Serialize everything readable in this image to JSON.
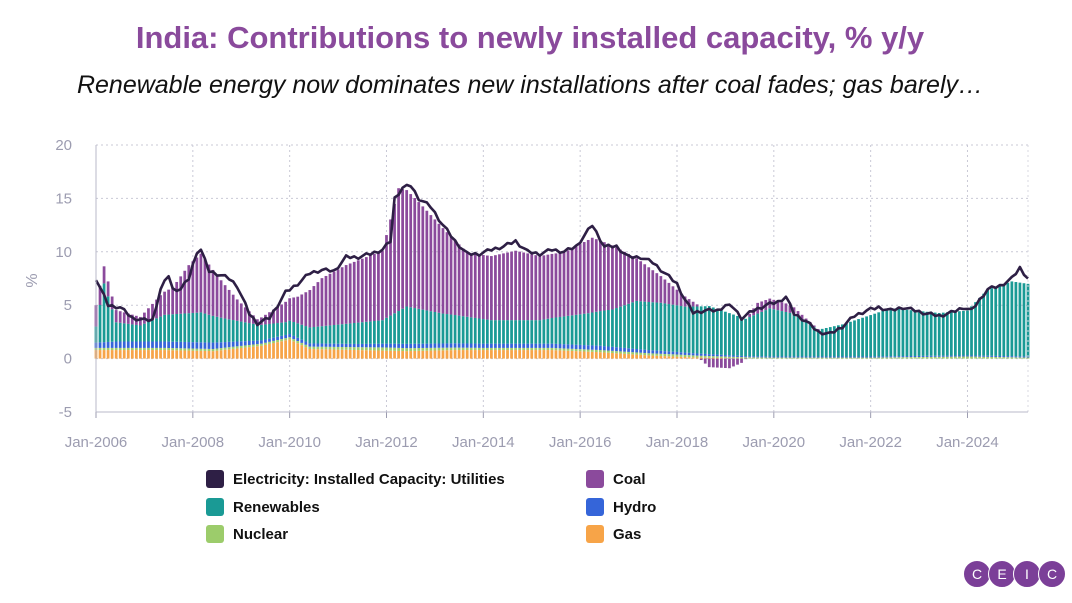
{
  "header": {
    "title": "India: Contributions to newly installed capacity, % y/y",
    "subtitle": "Renewable energy now dominates new installations after coal fades; gas barely…"
  },
  "logo": {
    "letters": [
      "C",
      "E",
      "I",
      "C"
    ],
    "color": "#7b3f98"
  },
  "chart_data": {
    "type": "bar",
    "ylabel": "%",
    "ylim": [
      -5,
      20
    ],
    "yticks": [
      -5,
      0,
      5,
      10,
      15,
      20
    ],
    "xlim": [
      "2006-01",
      "2025-04"
    ],
    "xticks": [
      "Jan-2006",
      "Jan-2008",
      "Jan-2010",
      "Jan-2012",
      "Jan-2014",
      "Jan-2016",
      "Jan-2018",
      "Jan-2020",
      "Jan-2022",
      "Jan-2024"
    ],
    "grid": true,
    "legend_position": "bottom",
    "stacked": true,
    "frequency": "monthly",
    "series": [
      {
        "name": "Electricity: Installed Capacity: Utilities",
        "kind": "line",
        "color": "#2e1f45",
        "anchors": [
          [
            "2006-01",
            7.5
          ],
          [
            "2006-04",
            5.0
          ],
          [
            "2006-07",
            4.8
          ],
          [
            "2006-10",
            3.8
          ],
          [
            "2007-01",
            3.6
          ],
          [
            "2007-03",
            3.6
          ],
          [
            "2007-05",
            6.5
          ],
          [
            "2007-07",
            7.8
          ],
          [
            "2007-08",
            6.5
          ],
          [
            "2007-10",
            6.5
          ],
          [
            "2007-12",
            7.5
          ],
          [
            "2008-02",
            10.0
          ],
          [
            "2008-03",
            10.2
          ],
          [
            "2008-05",
            8.2
          ],
          [
            "2008-08",
            7.8
          ],
          [
            "2008-10",
            7.5
          ],
          [
            "2008-12",
            6.8
          ],
          [
            "2009-03",
            4.2
          ],
          [
            "2009-05",
            3.3
          ],
          [
            "2009-08",
            3.8
          ],
          [
            "2009-10",
            5.0
          ],
          [
            "2009-12",
            6.2
          ],
          [
            "2010-03",
            7.0
          ],
          [
            "2010-06",
            8.0
          ],
          [
            "2010-09",
            8.3
          ],
          [
            "2010-12",
            8.2
          ],
          [
            "2011-03",
            9.5
          ],
          [
            "2011-06",
            9.5
          ],
          [
            "2011-09",
            9.8
          ],
          [
            "2011-12",
            10.2
          ],
          [
            "2012-02",
            11.0
          ],
          [
            "2012-03",
            15.0
          ],
          [
            "2012-05",
            16.0
          ],
          [
            "2012-07",
            16.2
          ],
          [
            "2012-09",
            15.0
          ],
          [
            "2012-12",
            14.2
          ],
          [
            "2013-03",
            12.5
          ],
          [
            "2013-06",
            11.0
          ],
          [
            "2013-09",
            9.8
          ],
          [
            "2013-12",
            9.8
          ],
          [
            "2014-03",
            10.2
          ],
          [
            "2014-06",
            10.5
          ],
          [
            "2014-09",
            11.0
          ],
          [
            "2014-12",
            10.0
          ],
          [
            "2015-03",
            9.8
          ],
          [
            "2015-06",
            10.2
          ],
          [
            "2015-09",
            10.0
          ],
          [
            "2015-12",
            10.5
          ],
          [
            "2016-02",
            11.5
          ],
          [
            "2016-04",
            12.5
          ],
          [
            "2016-07",
            10.5
          ],
          [
            "2016-10",
            10.5
          ],
          [
            "2017-01",
            9.5
          ],
          [
            "2017-04",
            9.5
          ],
          [
            "2017-07",
            9.0
          ],
          [
            "2017-10",
            8.0
          ],
          [
            "2018-01",
            7.0
          ],
          [
            "2018-03",
            5.5
          ],
          [
            "2018-05",
            4.3
          ],
          [
            "2018-08",
            4.5
          ],
          [
            "2018-11",
            4.5
          ],
          [
            "2019-01",
            5.0
          ],
          [
            "2019-03",
            4.8
          ],
          [
            "2019-05",
            3.8
          ],
          [
            "2019-08",
            4.5
          ],
          [
            "2019-11",
            5.0
          ],
          [
            "2020-02",
            5.3
          ],
          [
            "2020-04",
            5.8
          ],
          [
            "2020-06",
            4.2
          ],
          [
            "2020-09",
            3.5
          ],
          [
            "2020-12",
            2.5
          ],
          [
            "2021-03",
            2.3
          ],
          [
            "2021-06",
            3.0
          ],
          [
            "2021-09",
            4.0
          ],
          [
            "2021-12",
            4.5
          ],
          [
            "2022-03",
            4.8
          ],
          [
            "2022-06",
            4.5
          ],
          [
            "2022-09",
            4.8
          ],
          [
            "2022-12",
            4.5
          ],
          [
            "2023-03",
            4.2
          ],
          [
            "2023-06",
            4.0
          ],
          [
            "2023-09",
            4.3
          ],
          [
            "2023-12",
            4.8
          ],
          [
            "2024-02",
            4.5
          ],
          [
            "2024-04",
            5.5
          ],
          [
            "2024-06",
            6.5
          ],
          [
            "2024-09",
            6.8
          ],
          [
            "2024-12",
            7.5
          ],
          [
            "2025-02",
            8.5
          ],
          [
            "2025-04",
            7.5
          ]
        ]
      },
      {
        "name": "Coal",
        "kind": "bar",
        "color": "#8b4a9c",
        "anchors": [
          [
            "2006-01",
            2.0
          ],
          [
            "2006-05",
            1.2
          ],
          [
            "2006-12",
            0.8
          ],
          [
            "2007-05",
            2.0
          ],
          [
            "2007-08",
            2.5
          ],
          [
            "2007-12",
            4.5
          ],
          [
            "2008-03",
            5.5
          ],
          [
            "2008-08",
            3.5
          ],
          [
            "2008-12",
            2.0
          ],
          [
            "2009-05",
            0.5
          ],
          [
            "2009-10",
            1.5
          ],
          [
            "2010-03",
            2.5
          ],
          [
            "2010-09",
            4.5
          ],
          [
            "2011-03",
            5.5
          ],
          [
            "2011-12",
            6.5
          ],
          [
            "2012-04",
            11.5
          ],
          [
            "2012-09",
            10.0
          ],
          [
            "2013-03",
            8.0
          ],
          [
            "2013-09",
            6.0
          ],
          [
            "2014-03",
            6.0
          ],
          [
            "2014-09",
            6.5
          ],
          [
            "2015-03",
            6.0
          ],
          [
            "2015-09",
            6.0
          ],
          [
            "2016-04",
            7.0
          ],
          [
            "2016-09",
            6.0
          ],
          [
            "2017-03",
            4.0
          ],
          [
            "2017-09",
            2.5
          ],
          [
            "2018-02",
            1.2
          ],
          [
            "2018-06",
            0.2
          ],
          [
            "2018-09",
            -0.8
          ],
          [
            "2019-02",
            -0.9
          ],
          [
            "2019-05",
            -0.4
          ],
          [
            "2019-09",
            1.0
          ],
          [
            "2020-04",
            0.8
          ],
          [
            "2020-09",
            0.3
          ],
          [
            "2021-01",
            0.0
          ],
          [
            "2025-04",
            0.0
          ]
        ]
      },
      {
        "name": "Renewables",
        "kind": "bar",
        "color": "#1a9a95",
        "anchors": [
          [
            "2006-01",
            1.5
          ],
          [
            "2006-03",
            5.5
          ],
          [
            "2006-06",
            1.8
          ],
          [
            "2006-12",
            1.5
          ],
          [
            "2007-06",
            2.5
          ],
          [
            "2008-03",
            2.8
          ],
          [
            "2008-09",
            2.2
          ],
          [
            "2009-05",
            1.5
          ],
          [
            "2009-12",
            1.2
          ],
          [
            "2010-06",
            1.5
          ],
          [
            "2011-06",
            2.0
          ],
          [
            "2011-12",
            2.2
          ],
          [
            "2012-06",
            3.5
          ],
          [
            "2013-03",
            2.8
          ],
          [
            "2014-03",
            2.2
          ],
          [
            "2015-03",
            2.2
          ],
          [
            "2016-03",
            3.0
          ],
          [
            "2016-09",
            3.5
          ],
          [
            "2017-03",
            4.5
          ],
          [
            "2017-09",
            4.5
          ],
          [
            "2018-03",
            4.3
          ],
          [
            "2018-09",
            4.5
          ],
          [
            "2019-06",
            3.5
          ],
          [
            "2019-12",
            4.5
          ],
          [
            "2020-06",
            4.0
          ],
          [
            "2020-12",
            2.5
          ],
          [
            "2021-06",
            3.0
          ],
          [
            "2022-06",
            4.5
          ],
          [
            "2023-06",
            4.0
          ],
          [
            "2024-01",
            4.2
          ],
          [
            "2024-06",
            6.2
          ],
          [
            "2024-12",
            7.0
          ],
          [
            "2025-04",
            6.8
          ]
        ]
      },
      {
        "name": "Hydro",
        "kind": "bar",
        "color": "#3565d9",
        "anchors": [
          [
            "2006-01",
            0.5
          ],
          [
            "2006-06",
            0.6
          ],
          [
            "2007-06",
            0.6
          ],
          [
            "2008-06",
            0.6
          ],
          [
            "2009-06",
            0.3
          ],
          [
            "2010-06",
            0.3
          ],
          [
            "2011-06",
            0.3
          ],
          [
            "2012-06",
            0.4
          ],
          [
            "2013-06",
            0.4
          ],
          [
            "2014-06",
            0.4
          ],
          [
            "2015-06",
            0.4
          ],
          [
            "2016-06",
            0.4
          ],
          [
            "2017-06",
            0.3
          ],
          [
            "2018-06",
            0.2
          ],
          [
            "2019-06",
            0.1
          ],
          [
            "2020-06",
            0.1
          ],
          [
            "2022-06",
            0.1
          ],
          [
            "2025-04",
            0.1
          ]
        ]
      },
      {
        "name": "Nuclear",
        "kind": "bar",
        "color": "#9ccc6b",
        "anchors": [
          [
            "2006-01",
            0.2
          ],
          [
            "2008-01",
            0.2
          ],
          [
            "2010-01",
            0.2
          ],
          [
            "2012-01",
            0.3
          ],
          [
            "2014-01",
            0.2
          ],
          [
            "2016-01",
            0.2
          ],
          [
            "2018-01",
            0.2
          ],
          [
            "2020-01",
            0.1
          ],
          [
            "2022-01",
            0.1
          ],
          [
            "2024-01",
            0.2
          ],
          [
            "2025-04",
            0.1
          ]
        ]
      },
      {
        "name": "Gas",
        "kind": "bar",
        "color": "#f7a448",
        "anchors": [
          [
            "2006-01",
            0.8
          ],
          [
            "2007-06",
            0.8
          ],
          [
            "2008-06",
            0.7
          ],
          [
            "2009-06",
            1.2
          ],
          [
            "2010-01",
            1.8
          ],
          [
            "2010-06",
            0.9
          ],
          [
            "2011-06",
            0.8
          ],
          [
            "2012-06",
            0.7
          ],
          [
            "2013-06",
            0.8
          ],
          [
            "2014-06",
            0.8
          ],
          [
            "2015-06",
            0.8
          ],
          [
            "2016-06",
            0.6
          ],
          [
            "2017-06",
            0.3
          ],
          [
            "2018-06",
            0.1
          ],
          [
            "2019-06",
            0.0
          ],
          [
            "2025-04",
            0.0
          ]
        ]
      }
    ]
  }
}
